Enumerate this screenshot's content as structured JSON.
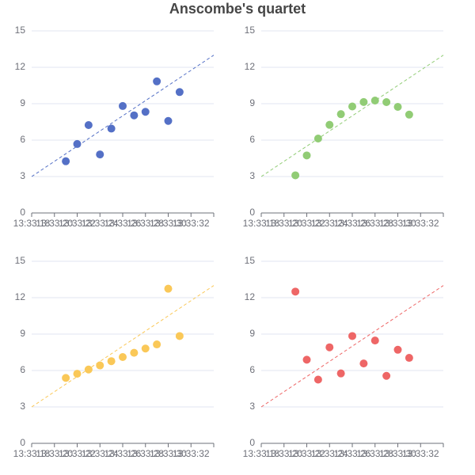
{
  "title": "Anscombe's quartet",
  "chart_data": [
    {
      "type": "scatter",
      "color": "#5470c6",
      "x": [
        10,
        8,
        13,
        9,
        11,
        14,
        6,
        4,
        12,
        7,
        5
      ],
      "y": [
        8.04,
        6.95,
        7.58,
        8.81,
        8.33,
        9.96,
        7.24,
        4.26,
        10.84,
        4.82,
        5.68
      ],
      "line": [
        [
          1,
          3
        ],
        [
          17,
          13
        ]
      ],
      "xlim": [
        1,
        17
      ],
      "ylim": [
        0,
        15
      ],
      "yticks": [
        0,
        3,
        6,
        9,
        12,
        15
      ],
      "grid": true,
      "xticks": [
        {
          "value": 1,
          "label": "13:33:18"
        },
        {
          "value": 3,
          "label": "13:33:20"
        },
        {
          "value": 5,
          "label": "13:33:22"
        },
        {
          "value": 7,
          "label": "13:33:24"
        },
        {
          "value": 9,
          "label": "13:33:26"
        },
        {
          "value": 11,
          "label": "13:33:28"
        },
        {
          "value": 13,
          "label": "13:33:30"
        },
        {
          "value": 15,
          "label": "13:33:32"
        }
      ]
    },
    {
      "type": "scatter",
      "color": "#91cc75",
      "x": [
        10,
        8,
        13,
        9,
        11,
        14,
        6,
        4,
        12,
        7,
        5
      ],
      "y": [
        9.14,
        8.14,
        8.74,
        8.77,
        9.26,
        8.1,
        6.13,
        3.1,
        9.13,
        7.26,
        4.74
      ],
      "line": [
        [
          1,
          3
        ],
        [
          17,
          13
        ]
      ],
      "xlim": [
        1,
        17
      ],
      "ylim": [
        0,
        15
      ],
      "yticks": [
        0,
        3,
        6,
        9,
        12,
        15
      ],
      "grid": true,
      "xticks": [
        {
          "value": 1,
          "label": "13:33:18"
        },
        {
          "value": 3,
          "label": "13:33:20"
        },
        {
          "value": 5,
          "label": "13:33:22"
        },
        {
          "value": 7,
          "label": "13:33:24"
        },
        {
          "value": 9,
          "label": "13:33:26"
        },
        {
          "value": 11,
          "label": "13:33:28"
        },
        {
          "value": 13,
          "label": "13:33:30"
        },
        {
          "value": 15,
          "label": "13:33:32"
        }
      ]
    },
    {
      "type": "scatter",
      "color": "#fac858",
      "x": [
        10,
        8,
        13,
        9,
        11,
        14,
        6,
        4,
        12,
        7,
        5
      ],
      "y": [
        7.46,
        6.77,
        12.74,
        7.11,
        7.81,
        8.84,
        6.08,
        5.39,
        8.15,
        6.42,
        5.73
      ],
      "line": [
        [
          1,
          3
        ],
        [
          17,
          13
        ]
      ],
      "xlim": [
        1,
        17
      ],
      "ylim": [
        0,
        15
      ],
      "yticks": [
        0,
        3,
        6,
        9,
        12,
        15
      ],
      "grid": true,
      "xticks": [
        {
          "value": 1,
          "label": "13:33:18"
        },
        {
          "value": 3,
          "label": "13:33:20"
        },
        {
          "value": 5,
          "label": "13:33:22"
        },
        {
          "value": 7,
          "label": "13:33:24"
        },
        {
          "value": 9,
          "label": "13:33:26"
        },
        {
          "value": 11,
          "label": "13:33:28"
        },
        {
          "value": 13,
          "label": "13:33:30"
        },
        {
          "value": 15,
          "label": "13:33:32"
        }
      ]
    },
    {
      "type": "scatter",
      "color": "#ee6666",
      "x": [
        10,
        8,
        13,
        9,
        11,
        14,
        6,
        4,
        12,
        7,
        5
      ],
      "y": [
        6.58,
        5.76,
        7.71,
        8.84,
        8.47,
        7.04,
        5.25,
        12.5,
        5.56,
        7.91,
        6.89
      ],
      "line": [
        [
          1,
          3
        ],
        [
          17,
          13
        ]
      ],
      "xlim": [
        1,
        17
      ],
      "ylim": [
        0,
        15
      ],
      "yticks": [
        0,
        3,
        6,
        9,
        12,
        15
      ],
      "grid": true,
      "xticks": [
        {
          "value": 1,
          "label": "13:33:18"
        },
        {
          "value": 3,
          "label": "13:33:20"
        },
        {
          "value": 5,
          "label": "13:33:22"
        },
        {
          "value": 7,
          "label": "13:33:24"
        },
        {
          "value": 9,
          "label": "13:33:26"
        },
        {
          "value": 11,
          "label": "13:33:28"
        },
        {
          "value": 13,
          "label": "13:33:30"
        },
        {
          "value": 15,
          "label": "13:33:32"
        }
      ]
    }
  ]
}
